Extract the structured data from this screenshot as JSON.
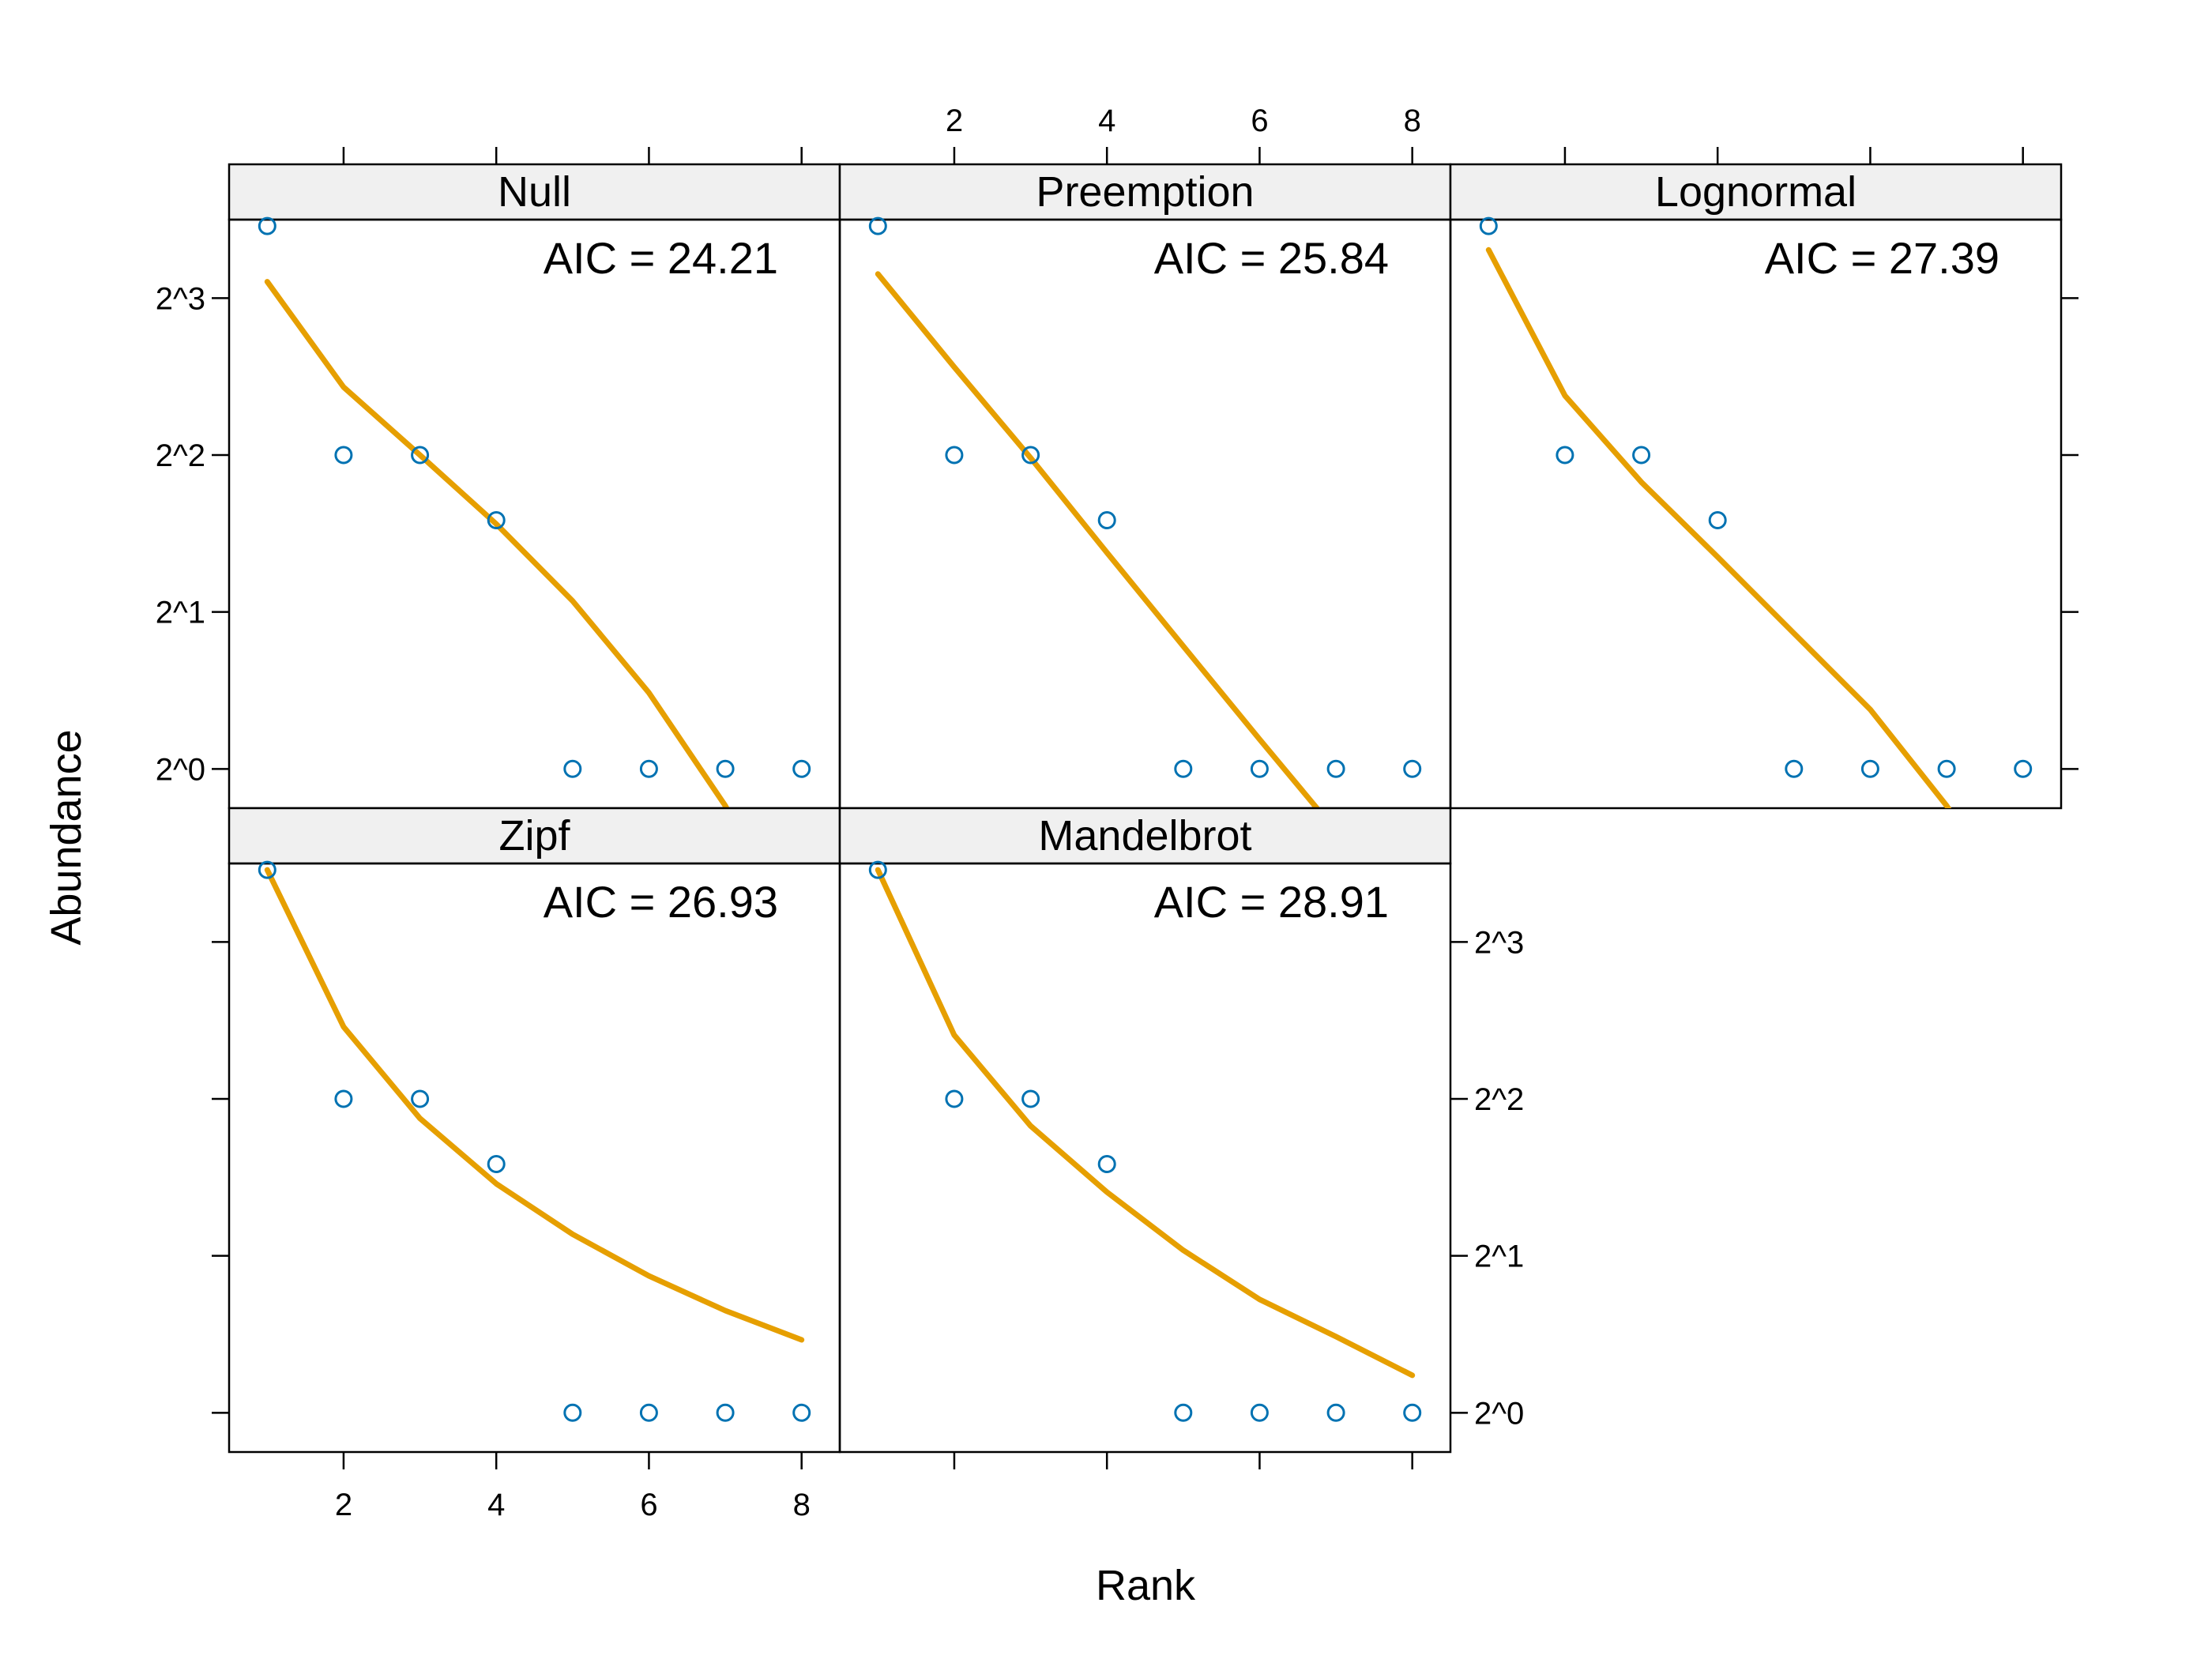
{
  "chart_data": {
    "type": "scatter",
    "layout": "lattice panels, 3 columns x 2 rows",
    "xlabel": "Rank",
    "ylabel": "Abundance",
    "y_scale": "log2",
    "xlim": [
      0.5,
      8.5
    ],
    "ylim_log2": [
      -0.25,
      3.5
    ],
    "x_ticks": [
      2,
      4,
      6,
      8
    ],
    "y_ticks": [
      0,
      1,
      2,
      3
    ],
    "y_tick_labels": [
      "2^0",
      "2^1",
      "2^2",
      "2^3"
    ],
    "observed": {
      "x": [
        1,
        2,
        3,
        4,
        5,
        6,
        7,
        8
      ],
      "y": [
        11,
        4,
        4,
        3,
        1,
        1,
        1,
        1
      ]
    },
    "panels": [
      {
        "name": "Null",
        "aic_text": "AIC = 24.21",
        "fitted": {
          "x": [
            1,
            2,
            3,
            4,
            5,
            6,
            7,
            8
          ],
          "y": [
            8.6,
            5.4,
            4.0,
            2.95,
            2.1,
            1.4,
            0.85,
            0.45
          ]
        }
      },
      {
        "name": "Preemption",
        "aic_text": "AIC = 25.84",
        "fitted": {
          "x": [
            1,
            2,
            3,
            4,
            5,
            6,
            7,
            8
          ],
          "y": [
            8.9,
            5.9,
            3.95,
            2.6,
            1.72,
            1.14,
            0.76,
            0.5
          ]
        }
      },
      {
        "name": "Lognormal",
        "aic_text": "AIC = 27.39",
        "fitted": {
          "x": [
            1,
            2,
            3,
            4,
            5,
            6,
            7,
            8
          ],
          "y": [
            9.9,
            5.2,
            3.55,
            2.55,
            1.82,
            1.3,
            0.85,
            0.5
          ]
        }
      },
      {
        "name": "Zipf",
        "aic_text": "AIC = 26.93",
        "fitted": {
          "x": [
            1,
            2,
            3,
            4,
            5,
            6,
            7,
            8
          ],
          "y": [
            11,
            5.5,
            3.67,
            2.75,
            2.2,
            1.83,
            1.57,
            1.38
          ]
        }
      },
      {
        "name": "Mandelbrot",
        "aic_text": "AIC = 28.91",
        "fitted": {
          "x": [
            1,
            2,
            3,
            4,
            5,
            6,
            7,
            8
          ],
          "y": [
            11,
            5.3,
            3.55,
            2.65,
            2.05,
            1.65,
            1.4,
            1.18
          ]
        }
      }
    ],
    "colors": {
      "points": "#0072b2",
      "fitted_line": "#e69f00",
      "strip_background": "#f0f0f0",
      "frame": "#000000"
    }
  }
}
